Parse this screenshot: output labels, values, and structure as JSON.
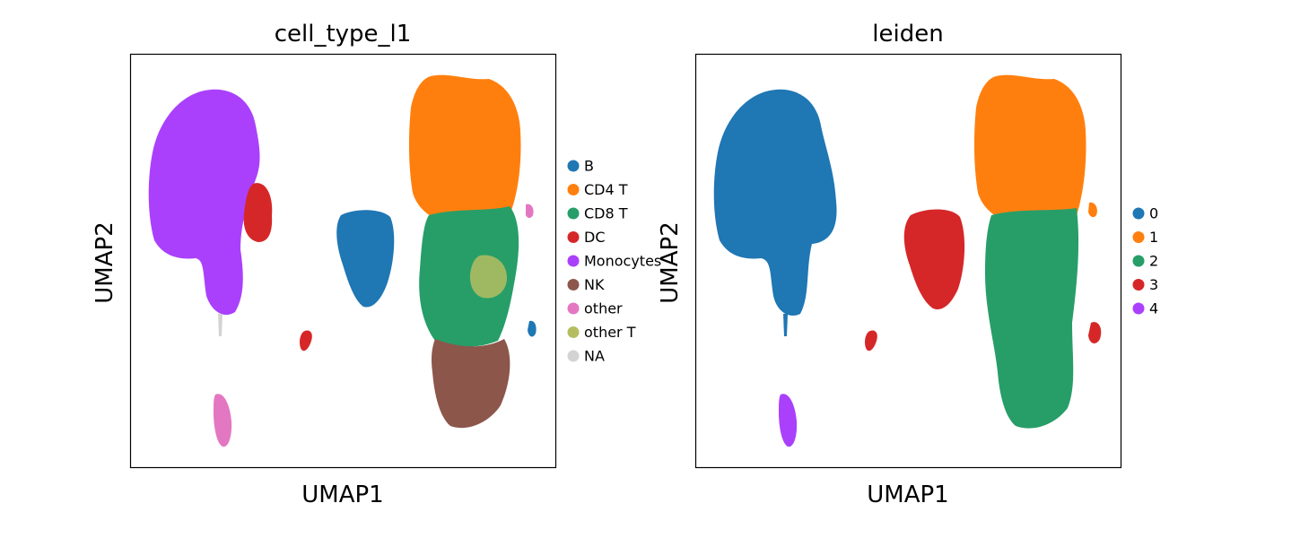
{
  "chart_data": [
    {
      "type": "scatter",
      "title": "cell_type_l1",
      "xlabel": "UMAP1",
      "ylabel": "UMAP2",
      "grid": false,
      "ticks": false,
      "legend_position": "right",
      "series": [
        {
          "name": "B",
          "color": "#1f77b4"
        },
        {
          "name": "CD4 T",
          "color": "#ff7f0e"
        },
        {
          "name": "CD8 T",
          "color": "#279e68"
        },
        {
          "name": "DC",
          "color": "#d62728"
        },
        {
          "name": "Monocytes",
          "color": "#aa40fc"
        },
        {
          "name": "NK",
          "color": "#8c564b"
        },
        {
          "name": "other",
          "color": "#e377c2"
        },
        {
          "name": "other T",
          "color": "#b5bd61"
        },
        {
          "name": "NA",
          "color": "#d3d3d3"
        }
      ]
    },
    {
      "type": "scatter",
      "title": "leiden",
      "xlabel": "UMAP1",
      "ylabel": "UMAP2",
      "grid": false,
      "ticks": false,
      "legend_position": "right",
      "series": [
        {
          "name": "0",
          "color": "#1f77b4"
        },
        {
          "name": "1",
          "color": "#ff7f0e"
        },
        {
          "name": "2",
          "color": "#279e68"
        },
        {
          "name": "3",
          "color": "#d62728"
        },
        {
          "name": "4",
          "color": "#aa40fc"
        }
      ]
    }
  ]
}
